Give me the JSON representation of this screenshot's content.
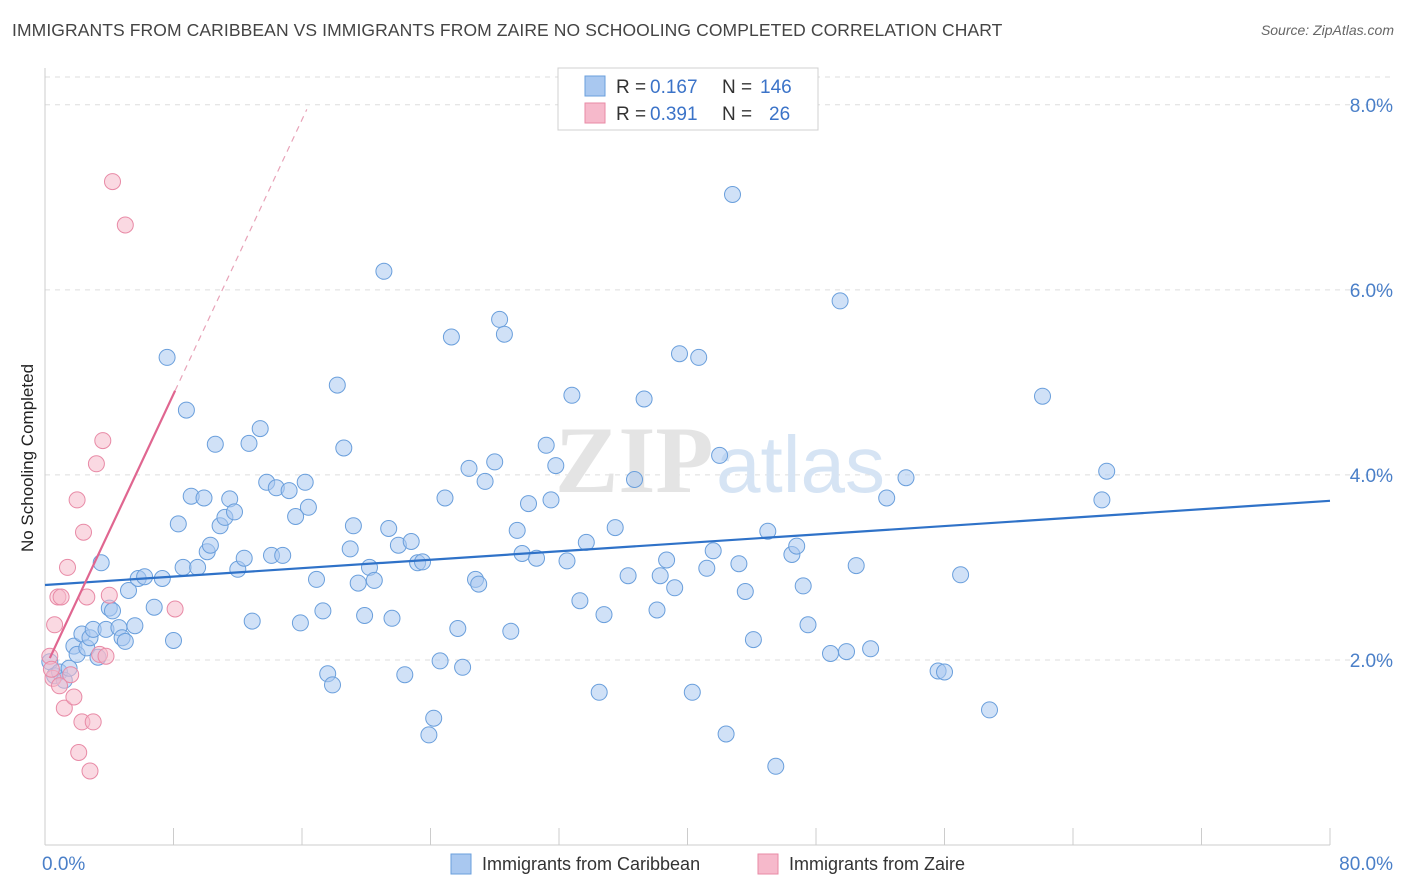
{
  "title": "IMMIGRANTS FROM CARIBBEAN VS IMMIGRANTS FROM ZAIRE NO SCHOOLING COMPLETED CORRELATION CHART",
  "source": "Source: ZipAtlas.com",
  "watermark": {
    "zip": "ZIP",
    "atlas": "atlas"
  },
  "colors": {
    "blue_fill": "#a9c8f0",
    "blue_stroke": "#6a9fdc",
    "blue_line": "#2f72c8",
    "pink_fill": "#f6b9cb",
    "pink_stroke": "#e88aa6",
    "pink_line": "#e06690",
    "grid": "#dddddd",
    "tick_text": "#4a7fc8"
  },
  "legend": {
    "rows": [
      {
        "r_label": "R =",
        "r_value": "0.167",
        "n_label": "N =",
        "n_value": "146",
        "color": "blue"
      },
      {
        "r_label": "R =",
        "r_value": "0.391",
        "n_label": "N =",
        "n_value": "26",
        "color": "pink"
      }
    ]
  },
  "chart_data": {
    "type": "scatter",
    "title": "IMMIGRANTS FROM CARIBBEAN VS IMMIGRANTS FROM ZAIRE NO SCHOOLING COMPLETED CORRELATION CHART",
    "xlabel": "",
    "ylabel": "No Schooling Completed",
    "xlim": [
      0,
      80
    ],
    "ylim": [
      0,
      8.3
    ],
    "x_tick_labels": [
      "0.0%",
      "80.0%"
    ],
    "y_ticks": [
      2,
      4,
      6,
      8
    ],
    "y_tick_labels": [
      "2.0%",
      "4.0%",
      "6.0%",
      "8.0%"
    ],
    "grid": true,
    "legend_position": "top-center",
    "series": [
      {
        "name": "Immigrants from Caribbean",
        "color": "#a9c8f0",
        "trend": {
          "x": [
            0,
            80
          ],
          "y": [
            2.81,
            3.72
          ]
        },
        "points": [
          [
            0.3,
            1.98
          ],
          [
            0.6,
            1.83
          ],
          [
            0.9,
            1.87
          ],
          [
            1.2,
            1.78
          ],
          [
            1.5,
            1.91
          ],
          [
            1.8,
            2.15
          ],
          [
            2.0,
            2.06
          ],
          [
            2.3,
            2.28
          ],
          [
            2.6,
            2.13
          ],
          [
            2.8,
            2.24
          ],
          [
            3.0,
            2.33
          ],
          [
            3.3,
            2.03
          ],
          [
            3.5,
            3.05
          ],
          [
            3.8,
            2.33
          ],
          [
            4.0,
            2.56
          ],
          [
            4.2,
            2.53
          ],
          [
            4.6,
            2.35
          ],
          [
            4.8,
            2.24
          ],
          [
            5.0,
            2.2
          ],
          [
            5.2,
            2.75
          ],
          [
            5.6,
            2.37
          ],
          [
            5.8,
            2.88
          ],
          [
            6.2,
            2.9
          ],
          [
            6.8,
            2.57
          ],
          [
            7.3,
            2.88
          ],
          [
            7.6,
            5.27
          ],
          [
            8.0,
            2.21
          ],
          [
            8.3,
            3.47
          ],
          [
            8.6,
            3.0
          ],
          [
            8.8,
            4.7
          ],
          [
            9.1,
            3.77
          ],
          [
            9.5,
            3.0
          ],
          [
            9.9,
            3.75
          ],
          [
            10.1,
            3.17
          ],
          [
            10.3,
            3.24
          ],
          [
            10.6,
            4.33
          ],
          [
            10.9,
            3.45
          ],
          [
            11.2,
            3.54
          ],
          [
            11.5,
            3.74
          ],
          [
            11.8,
            3.6
          ],
          [
            12.0,
            2.98
          ],
          [
            12.4,
            3.1
          ],
          [
            12.7,
            4.34
          ],
          [
            12.9,
            2.42
          ],
          [
            13.4,
            4.5
          ],
          [
            13.8,
            3.92
          ],
          [
            14.1,
            3.13
          ],
          [
            14.4,
            3.86
          ],
          [
            14.8,
            3.13
          ],
          [
            15.2,
            3.83
          ],
          [
            15.6,
            3.55
          ],
          [
            15.9,
            2.4
          ],
          [
            16.2,
            3.92
          ],
          [
            16.4,
            3.65
          ],
          [
            16.9,
            2.87
          ],
          [
            17.3,
            2.53
          ],
          [
            17.6,
            1.85
          ],
          [
            17.9,
            1.73
          ],
          [
            18.2,
            4.97
          ],
          [
            18.6,
            4.29
          ],
          [
            19.0,
            3.2
          ],
          [
            19.2,
            3.45
          ],
          [
            19.5,
            2.83
          ],
          [
            19.9,
            2.48
          ],
          [
            20.2,
            3.0
          ],
          [
            20.5,
            2.86
          ],
          [
            21.1,
            6.2
          ],
          [
            21.4,
            3.42
          ],
          [
            21.6,
            2.45
          ],
          [
            22.0,
            3.24
          ],
          [
            22.4,
            1.84
          ],
          [
            22.8,
            3.28
          ],
          [
            23.2,
            3.05
          ],
          [
            23.5,
            3.06
          ],
          [
            23.9,
            1.19
          ],
          [
            24.2,
            1.37
          ],
          [
            24.6,
            1.99
          ],
          [
            24.9,
            3.75
          ],
          [
            25.3,
            5.49
          ],
          [
            25.7,
            2.34
          ],
          [
            26.0,
            1.92
          ],
          [
            26.4,
            4.07
          ],
          [
            26.8,
            2.87
          ],
          [
            27.0,
            2.82
          ],
          [
            27.4,
            3.93
          ],
          [
            28.0,
            4.14
          ],
          [
            28.3,
            5.68
          ],
          [
            28.6,
            5.52
          ],
          [
            29.0,
            2.31
          ],
          [
            29.4,
            3.4
          ],
          [
            29.7,
            3.15
          ],
          [
            30.1,
            3.69
          ],
          [
            30.6,
            3.1
          ],
          [
            31.2,
            4.32
          ],
          [
            31.5,
            3.73
          ],
          [
            31.8,
            4.1
          ],
          [
            32.5,
            3.07
          ],
          [
            32.8,
            4.86
          ],
          [
            33.3,
            2.64
          ],
          [
            33.7,
            3.27
          ],
          [
            34.5,
            1.65
          ],
          [
            34.8,
            2.49
          ],
          [
            35.5,
            3.43
          ],
          [
            36.3,
            2.91
          ],
          [
            36.7,
            3.95
          ],
          [
            37.3,
            4.82
          ],
          [
            38.1,
            2.54
          ],
          [
            38.3,
            2.91
          ],
          [
            38.7,
            3.08
          ],
          [
            39.2,
            2.78
          ],
          [
            39.5,
            5.31
          ],
          [
            40.3,
            1.65
          ],
          [
            40.7,
            5.27
          ],
          [
            41.2,
            2.99
          ],
          [
            41.6,
            3.18
          ],
          [
            42.0,
            4.21
          ],
          [
            42.4,
            1.2
          ],
          [
            42.8,
            7.03
          ],
          [
            43.2,
            3.04
          ],
          [
            43.6,
            2.74
          ],
          [
            44.1,
            2.22
          ],
          [
            45.0,
            3.39
          ],
          [
            45.5,
            0.85
          ],
          [
            46.5,
            3.14
          ],
          [
            46.8,
            3.23
          ],
          [
            47.2,
            2.8
          ],
          [
            47.5,
            2.38
          ],
          [
            48.9,
            2.07
          ],
          [
            49.5,
            5.88
          ],
          [
            49.9,
            2.09
          ],
          [
            50.5,
            3.02
          ],
          [
            51.4,
            2.12
          ],
          [
            52.4,
            3.75
          ],
          [
            53.6,
            3.97
          ],
          [
            55.6,
            1.88
          ],
          [
            56.0,
            1.87
          ],
          [
            57.0,
            2.92
          ],
          [
            58.8,
            1.46
          ],
          [
            62.1,
            4.85
          ],
          [
            65.8,
            3.73
          ],
          [
            66.1,
            4.04
          ]
        ]
      },
      {
        "name": "Immigrants from Zaire",
        "color": "#f6b9cb",
        "trend": {
          "x": [
            0.3,
            8.1
          ],
          "y": [
            2.02,
            4.91
          ]
        },
        "trend_dashed": {
          "x": [
            8.1,
            16.3
          ],
          "y": [
            4.91,
            7.95
          ]
        },
        "points": [
          [
            0.3,
            2.04
          ],
          [
            0.5,
            1.8
          ],
          [
            0.6,
            2.38
          ],
          [
            0.8,
            2.68
          ],
          [
            1.0,
            2.68
          ],
          [
            1.2,
            1.48
          ],
          [
            1.4,
            3.0
          ],
          [
            1.6,
            1.84
          ],
          [
            1.8,
            1.6
          ],
          [
            2.0,
            3.73
          ],
          [
            2.1,
            1.0
          ],
          [
            2.3,
            1.33
          ],
          [
            2.4,
            3.38
          ],
          [
            2.6,
            2.68
          ],
          [
            2.8,
            0.8
          ],
          [
            3.0,
            1.33
          ],
          [
            3.2,
            4.12
          ],
          [
            3.4,
            2.06
          ],
          [
            3.6,
            4.37
          ],
          [
            3.8,
            2.04
          ],
          [
            4.0,
            2.7
          ],
          [
            4.2,
            7.17
          ],
          [
            5.0,
            6.7
          ],
          [
            8.1,
            2.55
          ],
          [
            0.4,
            1.9
          ],
          [
            0.9,
            1.72
          ]
        ]
      }
    ]
  },
  "bottom_legend": [
    {
      "label": "Immigrants from Caribbean",
      "color": "blue"
    },
    {
      "label": "Immigrants from Zaire",
      "color": "pink"
    }
  ]
}
